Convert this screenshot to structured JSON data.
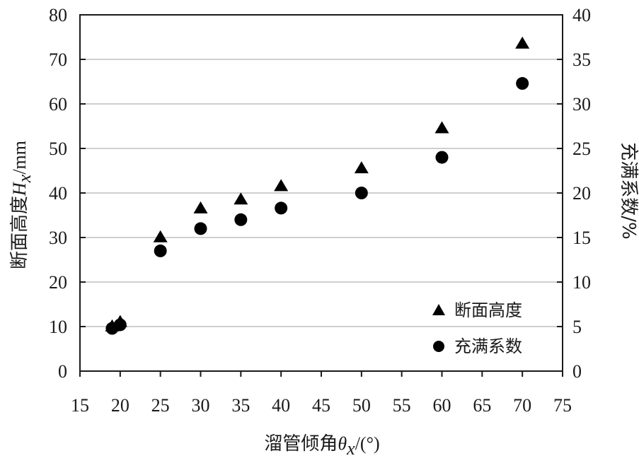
{
  "chart_data": {
    "type": "scatter",
    "title": "",
    "xlabel": {
      "prefix": "溜管倾角",
      "symbol": "θ",
      "sub": "x",
      "suffix": "/(°)"
    },
    "ylabel_left": {
      "prefix": "断面高度",
      "symbol": "H",
      "sub": "x",
      "suffix": "/mm"
    },
    "ylabel_right": "充满系数/%",
    "xlim": [
      15,
      75
    ],
    "xticks": [
      15,
      20,
      25,
      30,
      35,
      40,
      45,
      50,
      55,
      60,
      65,
      70,
      75
    ],
    "ylim_left": [
      0,
      80
    ],
    "yticks_left": [
      0,
      10,
      20,
      30,
      40,
      50,
      60,
      70,
      80
    ],
    "ylim_right": [
      0,
      40
    ],
    "yticks_right": [
      0,
      5,
      10,
      15,
      20,
      25,
      30,
      35,
      40
    ],
    "grid": "horizontal",
    "legend": "bottom-right",
    "series": [
      {
        "name": "断面高度",
        "marker": "triangle",
        "axis": "left",
        "x": [
          19,
          20,
          25,
          30,
          35,
          40,
          50,
          60,
          70
        ],
        "y": [
          10,
          11,
          30,
          36.5,
          38.5,
          41.5,
          45.5,
          54.5,
          73.5
        ]
      },
      {
        "name": "充满系数",
        "marker": "circle",
        "axis": "right",
        "x": [
          19,
          20,
          25,
          30,
          35,
          40,
          50,
          60,
          70
        ],
        "y": [
          4.8,
          5.2,
          13.5,
          16.0,
          17.0,
          18.3,
          20.0,
          24.0,
          32.3
        ]
      }
    ],
    "colors": {
      "marker": "#000000",
      "axis": "#1a1a1a",
      "grid": "#bfbfbf"
    }
  }
}
